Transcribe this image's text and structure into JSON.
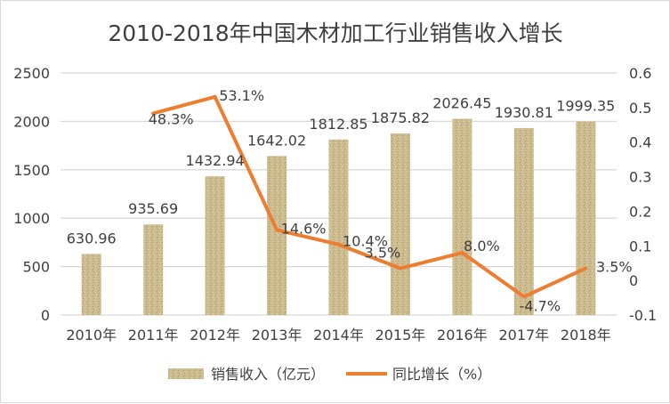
{
  "chart_data": {
    "type": "bar+line",
    "title": "2010-2018年中国木材加工行业销售收入增长",
    "categories": [
      "2010年",
      "2011年",
      "2012年",
      "2013年",
      "2014年",
      "2015年",
      "2016年",
      "2017年",
      "2018年"
    ],
    "series": [
      {
        "name": "销售收入（亿元）",
        "type": "bar",
        "axis": "left",
        "color": "#c9b68a",
        "values": [
          630.96,
          935.69,
          1432.94,
          1642.02,
          1812.85,
          1875.82,
          2026.45,
          1930.81,
          1999.35
        ],
        "labels": [
          "630.96",
          "935.69",
          "1432.94",
          "1642.02",
          "1812.85",
          "1875.82",
          "2026.45",
          "1930.81",
          "1999.35"
        ]
      },
      {
        "name": "同比增长（%）",
        "type": "line",
        "axis": "right",
        "color": "#ed7d31",
        "values": [
          null,
          0.483,
          0.531,
          0.146,
          0.104,
          0.035,
          0.08,
          -0.047,
          0.035
        ],
        "labels": [
          "",
          "48.3%",
          "53.1%",
          "14.6%",
          "10.4%",
          "3.5%",
          "8.0%",
          "-4.7%",
          "3.5%"
        ]
      }
    ],
    "y_left": {
      "range": [
        0,
        2500
      ],
      "ticks": [
        "0",
        "500",
        "1000",
        "1500",
        "2000",
        "2500"
      ]
    },
    "y_right": {
      "range": [
        -0.1,
        0.6
      ],
      "ticks": [
        "-0.1",
        "0",
        "0.1",
        "0.2",
        "0.3",
        "0.4",
        "0.5",
        "0.6"
      ]
    },
    "grid": true,
    "legend": "bottom"
  }
}
